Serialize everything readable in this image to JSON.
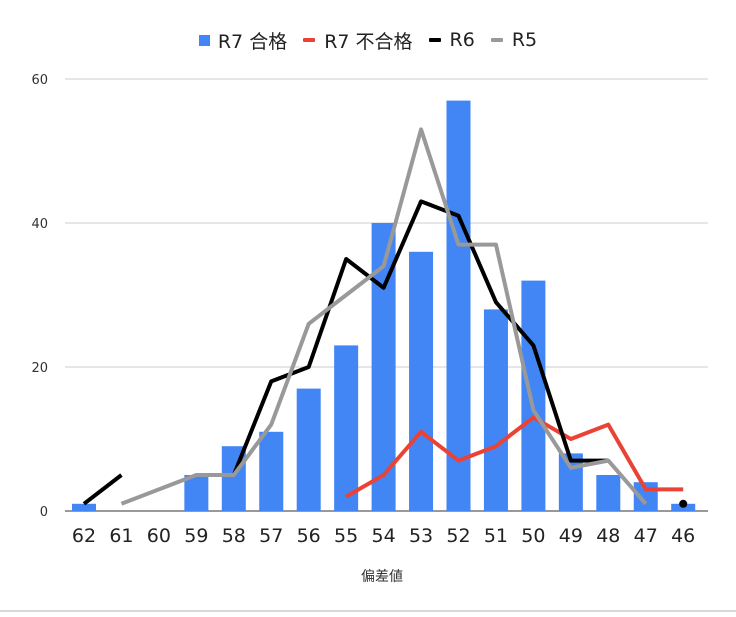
{
  "chart_data": {
    "type": "bar",
    "xlabel": "偏差値",
    "ylabel": "",
    "ylim": [
      0,
      60
    ],
    "yticks": [
      0,
      20,
      40,
      60
    ],
    "grid": true,
    "legend_position": "top-center",
    "categories": [
      "62",
      "61",
      "60",
      "59",
      "58",
      "57",
      "56",
      "55",
      "54",
      "53",
      "52",
      "51",
      "50",
      "49",
      "48",
      "47",
      "46"
    ],
    "series": [
      {
        "name": "R7 合格",
        "kind": "bar",
        "color": "#4285f4",
        "values": [
          1,
          null,
          null,
          5,
          9,
          11,
          17,
          23,
          40,
          36,
          57,
          28,
          32,
          8,
          5,
          4,
          1
        ]
      },
      {
        "name": "R7 不合格",
        "kind": "line",
        "color": "#ea4335",
        "values": [
          null,
          null,
          null,
          null,
          null,
          null,
          null,
          2,
          5,
          11,
          7,
          9,
          13,
          10,
          12,
          3,
          3
        ]
      },
      {
        "name": "R6",
        "kind": "line",
        "color": "#000000",
        "values": [
          1,
          5,
          null,
          null,
          5,
          18,
          20,
          35,
          31,
          43,
          41,
          29,
          23,
          7,
          7,
          null,
          1
        ]
      },
      {
        "name": "R5",
        "kind": "line",
        "color": "#999999",
        "values": [
          null,
          1,
          3,
          5,
          5,
          12,
          26,
          30,
          34,
          53,
          37,
          37,
          14,
          6,
          7,
          1,
          null
        ]
      }
    ]
  }
}
